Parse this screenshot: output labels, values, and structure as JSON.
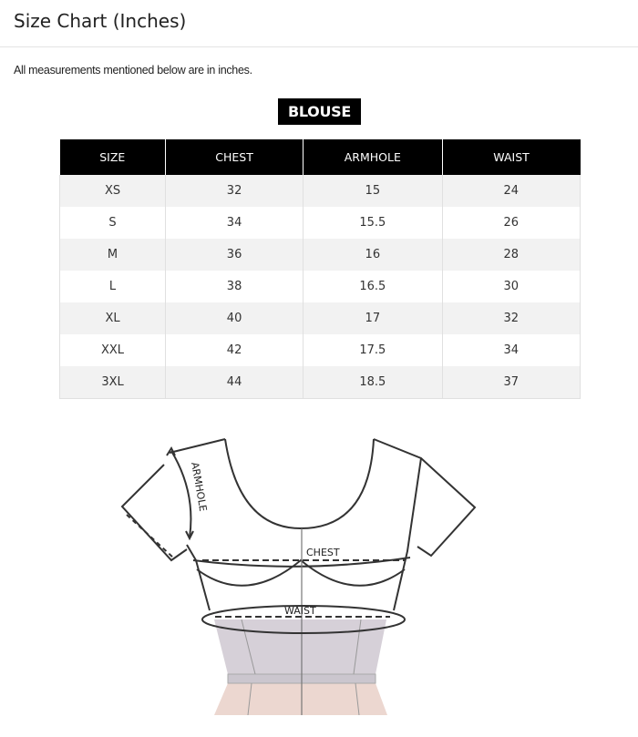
{
  "header": {
    "title": "Size Chart (Inches)"
  },
  "note": "All measurements mentioned below are in inches.",
  "category": "BLOUSE",
  "table": {
    "columns": [
      "SIZE",
      "CHEST",
      "ARMHOLE",
      "WAIST"
    ],
    "rows": [
      [
        "XS",
        "32",
        "15",
        "24"
      ],
      [
        "S",
        "34",
        "15.5",
        "26"
      ],
      [
        "M",
        "36",
        "16",
        "28"
      ],
      [
        "L",
        "38",
        "16.5",
        "30"
      ],
      [
        "XL",
        "40",
        "17",
        "32"
      ],
      [
        "XXL",
        "42",
        "17.5",
        "34"
      ],
      [
        "3XL",
        "44",
        "18.5",
        "37"
      ]
    ]
  },
  "diagram": {
    "labels": {
      "armhole": "ARMHOLE",
      "chest": "CHEST",
      "waist": "WAIST"
    }
  },
  "colors": {
    "header_bg": "#000000",
    "row_alt": "#f2f2f2",
    "waist_fill": "#d6d0d8",
    "skirt_fill": "#ecd7d0"
  }
}
